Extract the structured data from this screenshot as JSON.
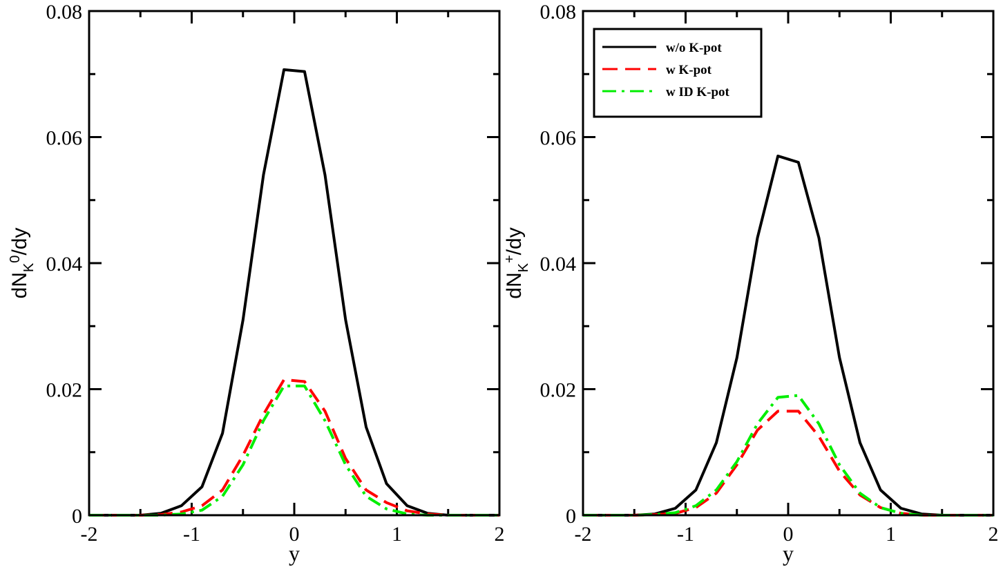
{
  "chart_data": [
    {
      "type": "line",
      "xlabel": "y",
      "ylabel": {
        "main": "dN",
        "sub": "K",
        "sup": "0",
        "tail": "/dy"
      },
      "xlim": [
        -2,
        2
      ],
      "ylim": [
        0,
        0.08
      ],
      "xticks": [
        -2,
        -1,
        0,
        1,
        2
      ],
      "xtick_labels": [
        "-2",
        "-1",
        "0",
        "1",
        "2"
      ],
      "yticks": [
        0,
        0.02,
        0.04,
        0.06,
        0.08
      ],
      "ytick_labels": [
        "0",
        "0.02",
        "0.04",
        "0.06",
        "0.08"
      ],
      "grid": false,
      "legend": null,
      "series": [
        {
          "key": "wo",
          "color": "#000000",
          "dash": "solid",
          "x": [
            -2,
            -1.5,
            -1.3,
            -1.1,
            -0.9,
            -0.7,
            -0.5,
            -0.3,
            -0.1,
            0.1,
            0.3,
            0.5,
            0.7,
            0.9,
            1.1,
            1.3,
            1.5,
            2
          ],
          "y": [
            0,
            0,
            0.0003,
            0.0015,
            0.0045,
            0.013,
            0.031,
            0.054,
            0.0707,
            0.0704,
            0.054,
            0.031,
            0.014,
            0.005,
            0.0015,
            0.0003,
            0,
            0
          ]
        },
        {
          "key": "w",
          "color": "#ff0000",
          "dash": "dashed",
          "x": [
            -2,
            -1.5,
            -1.3,
            -1.1,
            -0.9,
            -0.7,
            -0.5,
            -0.3,
            -0.1,
            0.1,
            0.3,
            0.5,
            0.7,
            0.9,
            1.1,
            1.3,
            1.5,
            2
          ],
          "y": [
            0,
            0,
            0.0001,
            0.0005,
            0.0015,
            0.004,
            0.0095,
            0.016,
            0.0215,
            0.0212,
            0.0165,
            0.009,
            0.004,
            0.002,
            0.0007,
            0.0002,
            0,
            0
          ]
        },
        {
          "key": "wid",
          "color": "#00ee00",
          "dash": "dashdot",
          "x": [
            -2,
            -1.5,
            -1.3,
            -1.1,
            -0.9,
            -0.7,
            -0.5,
            -0.3,
            -0.1,
            0.1,
            0.3,
            0.5,
            0.7,
            0.9,
            1.1,
            1.3,
            1.5,
            2
          ],
          "y": [
            0,
            0,
            0,
            0.0002,
            0.0008,
            0.003,
            0.008,
            0.015,
            0.0205,
            0.0205,
            0.015,
            0.008,
            0.003,
            0.001,
            0.0002,
            0,
            0,
            0
          ]
        }
      ]
    },
    {
      "type": "line",
      "xlabel": "y",
      "ylabel": {
        "main": "dN",
        "sub": "K",
        "sup": "+",
        "tail": "/dy"
      },
      "xlim": [
        -2,
        2
      ],
      "ylim": [
        0,
        0.08
      ],
      "xticks": [
        -2,
        -1,
        0,
        1,
        2
      ],
      "xtick_labels": [
        "-2",
        "-1",
        "0",
        "1",
        "2"
      ],
      "yticks": [
        0,
        0.02,
        0.04,
        0.06,
        0.08
      ],
      "ytick_labels": [
        "0",
        "0.02",
        "0.04",
        "0.06",
        "0.08"
      ],
      "grid": false,
      "legend": "top-left",
      "series": [
        {
          "key": "wo",
          "name": "w/o K-pot",
          "color": "#000000",
          "dash": "solid",
          "x": [
            -2,
            -1.5,
            -1.3,
            -1.1,
            -0.9,
            -0.7,
            -0.5,
            -0.3,
            -0.1,
            0.1,
            0.3,
            0.5,
            0.7,
            0.9,
            1.1,
            1.3,
            1.5,
            2
          ],
          "y": [
            0,
            0,
            0.0002,
            0.0011,
            0.004,
            0.0115,
            0.025,
            0.044,
            0.057,
            0.056,
            0.044,
            0.025,
            0.0115,
            0.004,
            0.0011,
            0.0002,
            0,
            0
          ]
        },
        {
          "key": "w",
          "name": "w K-pot",
          "color": "#ff0000",
          "dash": "dashed",
          "x": [
            -2,
            -1.5,
            -1.3,
            -1.1,
            -0.9,
            -0.7,
            -0.5,
            -0.3,
            -0.1,
            0.1,
            0.3,
            0.5,
            0.7,
            0.9,
            1.1,
            1.3,
            1.5,
            2
          ],
          "y": [
            0,
            0,
            0.0001,
            0.0003,
            0.0012,
            0.0035,
            0.008,
            0.0135,
            0.0165,
            0.0165,
            0.0125,
            0.007,
            0.0032,
            0.0012,
            0.0003,
            0,
            0,
            0
          ]
        },
        {
          "key": "wid",
          "name": "w ID K-pot",
          "color": "#00ee00",
          "dash": "dashdot",
          "x": [
            -2,
            -1.5,
            -1.3,
            -1.1,
            -0.9,
            -0.7,
            -0.5,
            -0.3,
            -0.1,
            0.1,
            0.3,
            0.5,
            0.7,
            0.9,
            1.1,
            1.3,
            1.5,
            2
          ],
          "y": [
            0,
            0,
            0.0001,
            0.0004,
            0.0015,
            0.004,
            0.0085,
            0.0145,
            0.0187,
            0.019,
            0.0145,
            0.008,
            0.0035,
            0.0012,
            0.0003,
            0,
            0,
            0
          ]
        }
      ]
    }
  ]
}
